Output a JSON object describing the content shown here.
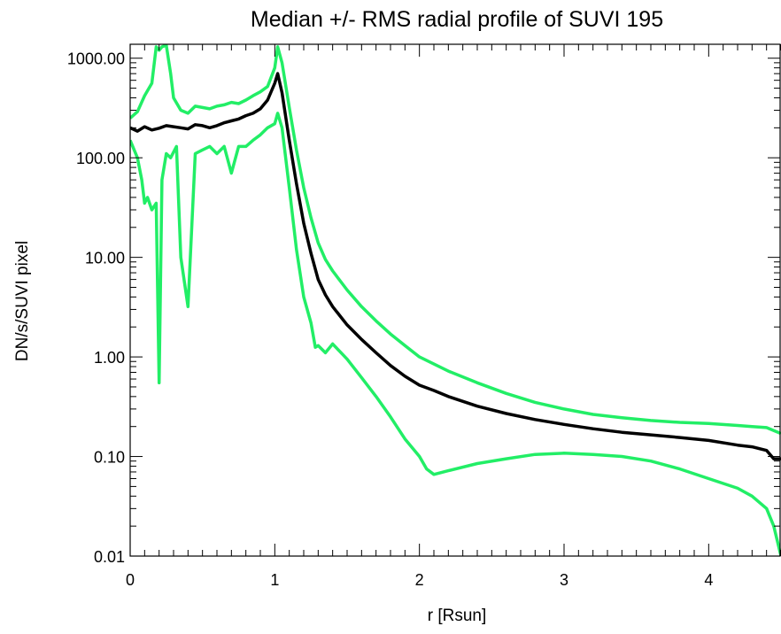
{
  "chart_data": {
    "type": "line",
    "title": "Median +/- RMS radial profile of SUVI 195",
    "xlabel": "r [Rsun]",
    "ylabel": "DN/s/SUVI pixel",
    "xlim": [
      0,
      4.5
    ],
    "ylim": [
      0.01,
      1380
    ],
    "yscale": "log",
    "grid": false,
    "legend": "none",
    "xticks": [
      {
        "value": 0,
        "label": "0"
      },
      {
        "value": 1,
        "label": "1"
      },
      {
        "value": 2,
        "label": "2"
      },
      {
        "value": 3,
        "label": "3"
      },
      {
        "value": 4,
        "label": "4"
      }
    ],
    "yticks": [
      {
        "value": 0.01,
        "label": "0.01"
      },
      {
        "value": 0.1,
        "label": "0.10"
      },
      {
        "value": 1,
        "label": "1.00"
      },
      {
        "value": 10,
        "label": "10.00"
      },
      {
        "value": 100,
        "label": "100.00"
      },
      {
        "value": 1000,
        "label": "1000.00"
      }
    ],
    "series": [
      {
        "color": "#000000",
        "x": [
          0.0,
          0.05,
          0.1,
          0.15,
          0.2,
          0.25,
          0.3,
          0.35,
          0.4,
          0.45,
          0.5,
          0.55,
          0.6,
          0.65,
          0.7,
          0.75,
          0.8,
          0.85,
          0.9,
          0.95,
          1.0,
          1.02,
          1.05,
          1.1,
          1.15,
          1.2,
          1.25,
          1.3,
          1.35,
          1.4,
          1.5,
          1.6,
          1.7,
          1.8,
          1.9,
          2.0,
          2.1,
          2.2,
          2.4,
          2.6,
          2.8,
          3.0,
          3.2,
          3.4,
          3.6,
          3.8,
          4.0,
          4.2,
          4.3,
          4.4,
          4.45,
          4.5
        ],
        "values": [
          200,
          185,
          205,
          190,
          198,
          210,
          205,
          200,
          195,
          215,
          210,
          200,
          210,
          225,
          235,
          245,
          265,
          280,
          310,
          380,
          560,
          700,
          450,
          150,
          55,
          22,
          11,
          6.0,
          4.2,
          3.2,
          2.1,
          1.5,
          1.1,
          0.82,
          0.64,
          0.52,
          0.46,
          0.4,
          0.32,
          0.27,
          0.235,
          0.21,
          0.19,
          0.175,
          0.165,
          0.155,
          0.145,
          0.13,
          0.125,
          0.115,
          0.095,
          0.095
        ]
      },
      {
        "color": "#22ee66",
        "x": [
          0.0,
          0.05,
          0.1,
          0.15,
          0.18,
          0.2,
          0.22,
          0.25,
          0.28,
          0.3,
          0.35,
          0.4,
          0.45,
          0.5,
          0.55,
          0.6,
          0.65,
          0.7,
          0.75,
          0.8,
          0.85,
          0.9,
          0.95,
          1.0,
          1.02,
          1.05,
          1.1,
          1.15,
          1.2,
          1.25,
          1.3,
          1.35,
          1.4,
          1.5,
          1.6,
          1.7,
          1.8,
          1.9,
          2.0,
          2.2,
          2.4,
          2.6,
          2.8,
          3.0,
          3.2,
          3.4,
          3.6,
          3.8,
          4.0,
          4.2,
          4.3,
          4.4,
          4.5
        ],
        "values": [
          250,
          290,
          420,
          560,
          1300,
          1200,
          1300,
          1350,
          700,
          400,
          300,
          280,
          330,
          320,
          310,
          330,
          340,
          360,
          350,
          380,
          420,
          460,
          520,
          800,
          1300,
          900,
          320,
          120,
          50,
          25,
          14,
          9.5,
          7.3,
          4.7,
          3.2,
          2.3,
          1.7,
          1.3,
          1.0,
          0.72,
          0.55,
          0.43,
          0.35,
          0.3,
          0.265,
          0.245,
          0.23,
          0.22,
          0.215,
          0.205,
          0.2,
          0.195,
          0.17
        ]
      },
      {
        "color": "#22ee66",
        "x": [
          0.0,
          0.05,
          0.08,
          0.1,
          0.12,
          0.15,
          0.18,
          0.2,
          0.22,
          0.25,
          0.28,
          0.32,
          0.35,
          0.4,
          0.45,
          0.5,
          0.55,
          0.6,
          0.65,
          0.7,
          0.75,
          0.8,
          0.85,
          0.9,
          0.95,
          1.0,
          1.02,
          1.05,
          1.1,
          1.15,
          1.2,
          1.25,
          1.28,
          1.3,
          1.35,
          1.4,
          1.5,
          1.6,
          1.7,
          1.8,
          1.9,
          2.0,
          2.05,
          2.1,
          2.2,
          2.4,
          2.6,
          2.8,
          3.0,
          3.2,
          3.4,
          3.6,
          3.8,
          4.0,
          4.2,
          4.3,
          4.4,
          4.45,
          4.5
        ],
        "values": [
          150,
          100,
          60,
          35,
          40,
          30,
          35,
          0.55,
          60,
          110,
          100,
          130,
          10,
          3.2,
          110,
          120,
          130,
          110,
          130,
          70,
          130,
          130,
          150,
          170,
          200,
          220,
          280,
          200,
          50,
          12,
          4.0,
          2.2,
          1.25,
          1.3,
          1.1,
          1.35,
          0.95,
          0.62,
          0.4,
          0.25,
          0.15,
          0.1,
          0.075,
          0.066,
          0.072,
          0.085,
          0.095,
          0.105,
          0.108,
          0.105,
          0.1,
          0.09,
          0.075,
          0.06,
          0.048,
          0.04,
          0.03,
          0.02,
          0.01
        ]
      }
    ]
  }
}
